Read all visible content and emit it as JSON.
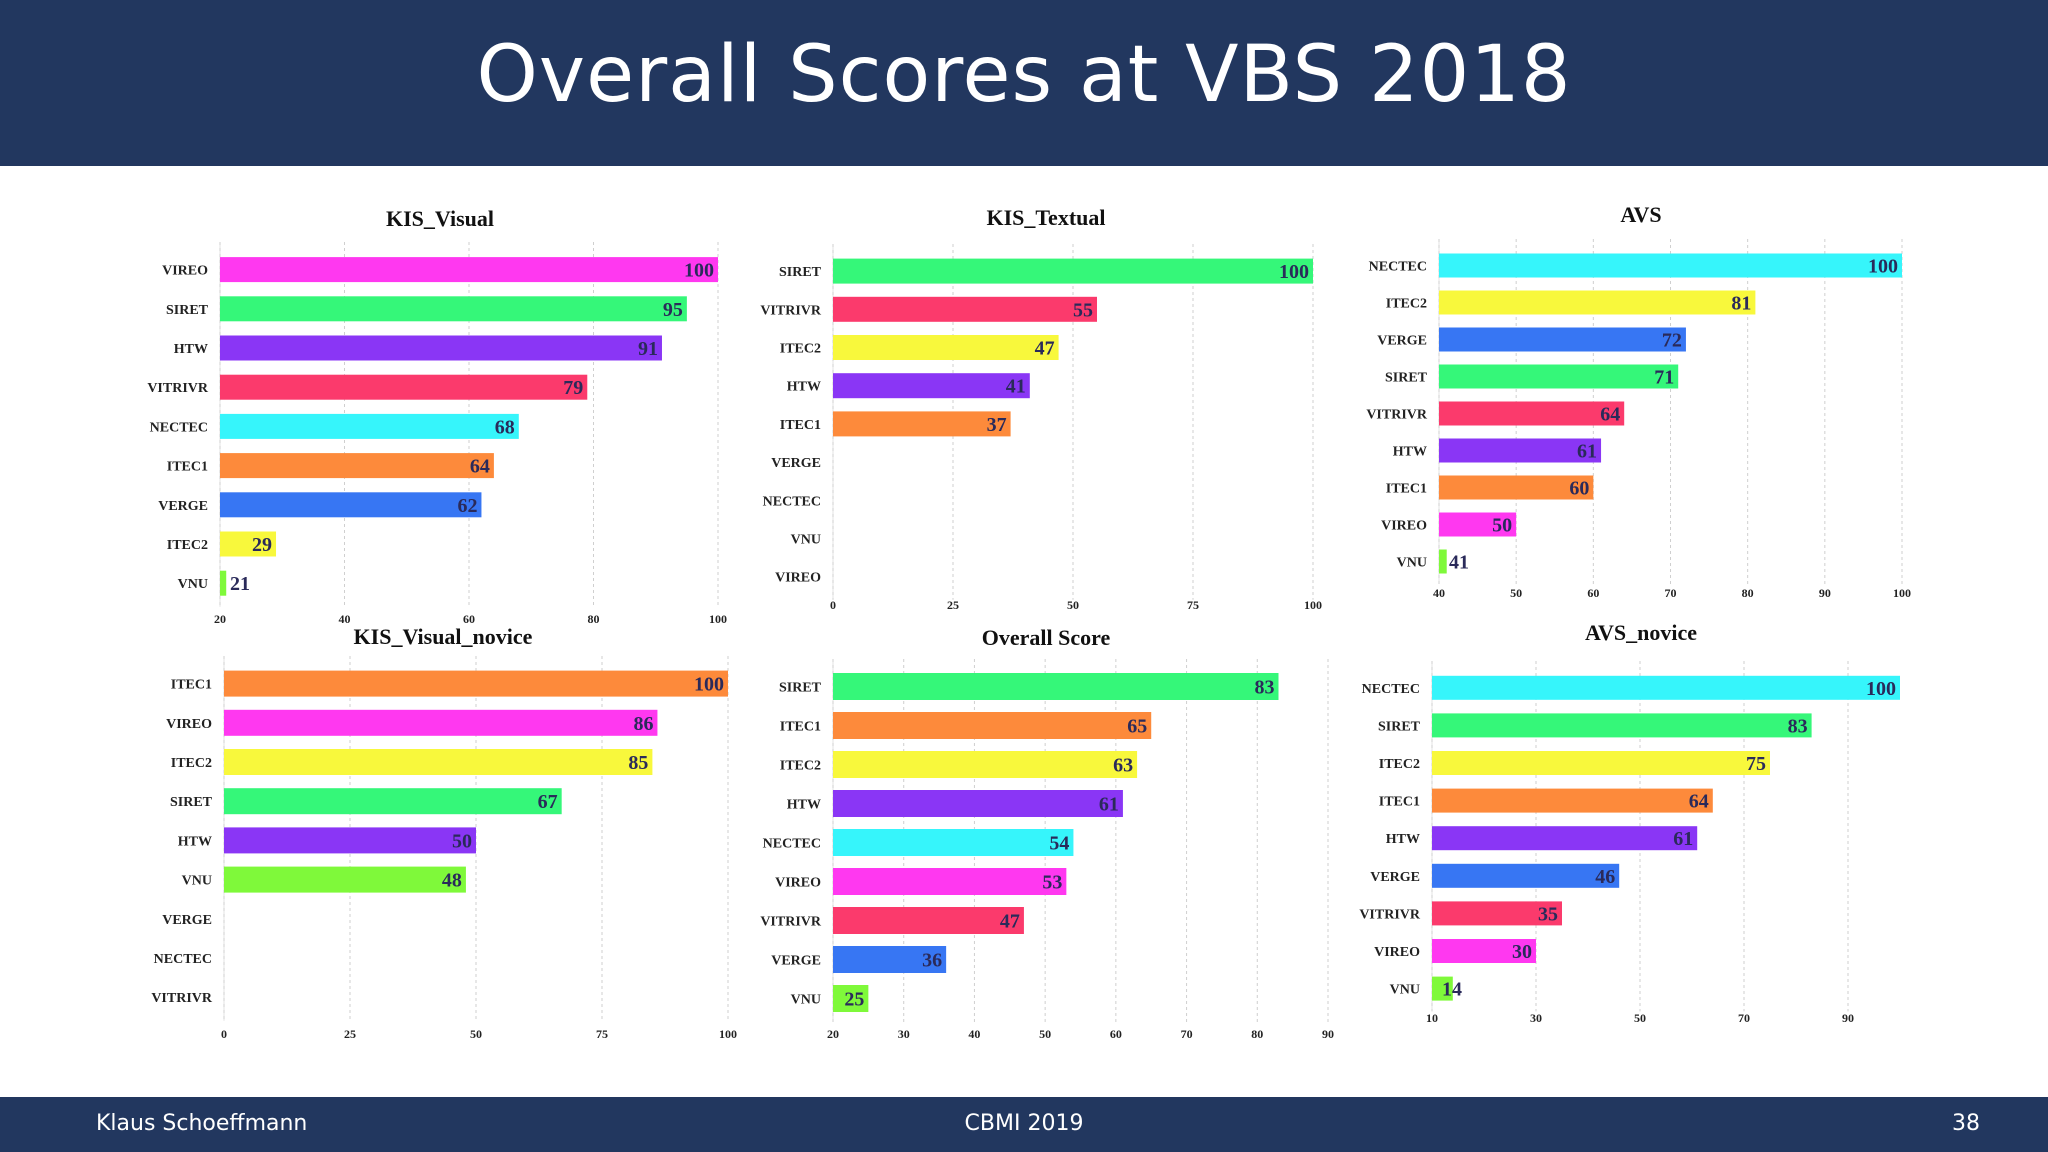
{
  "slide": {
    "title": "Overall Scores at VBS 2018",
    "footer_left": "Klaus Schoeffmann",
    "footer_center": "CBMI 2019",
    "footer_right": "38"
  },
  "colors": {
    "header_bg": "#22375f",
    "VIREO": "#ff38f0",
    "SIRET": "#35f779",
    "HTW": "#8a36f5",
    "VITRIVR": "#fb3a6c",
    "NECTEC": "#36f5fb",
    "ITEC1": "#fd8a3b",
    "VERGE": "#3776f3",
    "ITEC2": "#f8f83c",
    "VNU": "#7ff93a"
  },
  "chart_data": [
    {
      "type": "bar",
      "orientation": "horizontal",
      "title": "KIS_Visual",
      "categories": [
        "VIREO",
        "SIRET",
        "HTW",
        "VITRIVR",
        "NECTEC",
        "ITEC1",
        "VERGE",
        "ITEC2",
        "VNU"
      ],
      "values": [
        100,
        95,
        91,
        79,
        68,
        64,
        62,
        29,
        21
      ],
      "xlim": [
        20,
        100
      ],
      "xticks": [
        20,
        40,
        60,
        80,
        100
      ],
      "grid": true
    },
    {
      "type": "bar",
      "orientation": "horizontal",
      "title": "KIS_Textual",
      "categories": [
        "SIRET",
        "VITRIVR",
        "ITEC2",
        "HTW",
        "ITEC1",
        "VERGE",
        "NECTEC",
        "VNU",
        "VIREO"
      ],
      "values": [
        100,
        55,
        47,
        41,
        37,
        null,
        null,
        null,
        null
      ],
      "xlim": [
        0,
        100
      ],
      "xticks": [
        0,
        25,
        50,
        75,
        100
      ],
      "grid": true
    },
    {
      "type": "bar",
      "orientation": "horizontal",
      "title": "AVS",
      "categories": [
        "NECTEC",
        "ITEC2",
        "VERGE",
        "SIRET",
        "VITRIVR",
        "HTW",
        "ITEC1",
        "VIREO",
        "VNU"
      ],
      "values": [
        100,
        81,
        72,
        71,
        64,
        61,
        60,
        50,
        41
      ],
      "xlim": [
        40,
        100
      ],
      "xticks": [
        40,
        50,
        60,
        70,
        80,
        90,
        100
      ],
      "grid": true
    },
    {
      "type": "bar",
      "orientation": "horizontal",
      "title": "KIS_Visual_novice",
      "categories": [
        "ITEC1",
        "VIREO",
        "ITEC2",
        "SIRET",
        "HTW",
        "VNU",
        "VERGE",
        "NECTEC",
        "VITRIVR"
      ],
      "values": [
        100,
        86,
        85,
        67,
        50,
        48,
        null,
        null,
        null
      ],
      "xlim": [
        0,
        100
      ],
      "xticks": [
        0,
        25,
        50,
        75,
        100
      ],
      "grid": true
    },
    {
      "type": "bar",
      "orientation": "horizontal",
      "title": "Overall Score",
      "categories": [
        "SIRET",
        "ITEC1",
        "ITEC2",
        "HTW",
        "NECTEC",
        "VIREO",
        "VITRIVR",
        "VERGE",
        "VNU"
      ],
      "values": [
        83,
        65,
        63,
        61,
        54,
        53,
        47,
        36,
        25
      ],
      "xlim": [
        20,
        90
      ],
      "xticks": [
        20,
        30,
        40,
        50,
        60,
        70,
        80,
        90
      ],
      "grid": true
    },
    {
      "type": "bar",
      "orientation": "horizontal",
      "title": "AVS_novice",
      "categories": [
        "NECTEC",
        "SIRET",
        "ITEC2",
        "ITEC1",
        "HTW",
        "VERGE",
        "VITRIVR",
        "VIREO",
        "VNU"
      ],
      "values": [
        100,
        83,
        75,
        64,
        61,
        46,
        35,
        30,
        14
      ],
      "xlim": [
        10,
        100
      ],
      "xticks": [
        10,
        30,
        50,
        70,
        90
      ],
      "grid": true
    }
  ]
}
